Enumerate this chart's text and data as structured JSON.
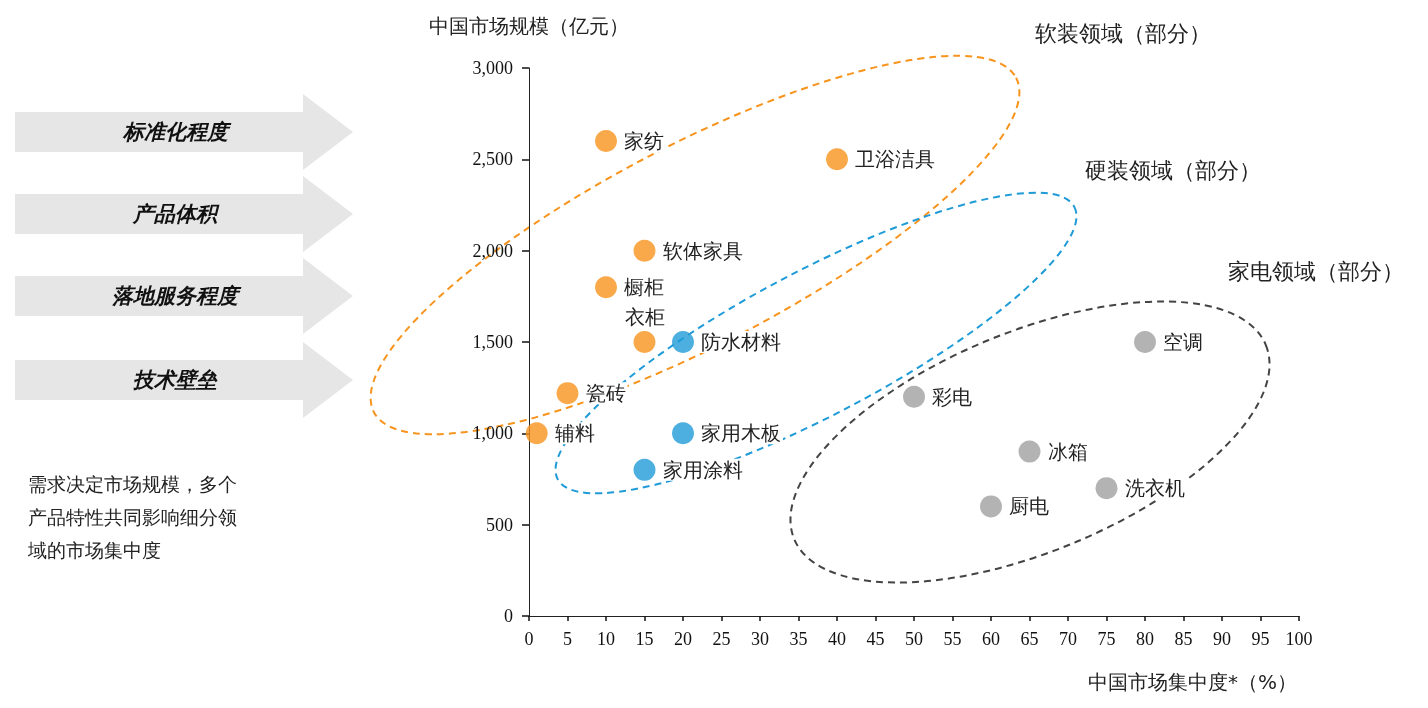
{
  "chart_data": {
    "type": "scatter",
    "xlabel": "中国市场集中度*（%）",
    "ylabel": "中国市场规模（亿元）",
    "xlim": [
      0,
      100
    ],
    "xticks": [
      0,
      5,
      10,
      15,
      20,
      25,
      30,
      35,
      40,
      45,
      50,
      55,
      60,
      65,
      70,
      75,
      80,
      85,
      90,
      95,
      100
    ],
    "ylim": [
      0,
      3000
    ],
    "yticks": [
      0,
      500,
      {
        "value": 1000,
        "label": "1,000"
      },
      {
        "value": 1500,
        "label": "1,500"
      },
      {
        "value": 2000,
        "label": "2,000"
      },
      {
        "value": 2500,
        "label": "2,500"
      },
      {
        "value": 3000,
        "label": "3,000"
      }
    ],
    "marker": "circle",
    "series": [
      {
        "color": "#f7941d",
        "x": [
          10,
          40,
          15,
          10,
          15,
          5,
          1
        ],
        "values": [
          2600,
          2500,
          2000,
          1800,
          1500,
          1220,
          1000
        ]
      },
      {
        "color": "#1f9bd7",
        "x": [
          20,
          20,
          15
        ],
        "values": [
          1500,
          1000,
          800
        ]
      },
      {
        "color": "#a0a0a0",
        "x": [
          80,
          50,
          65,
          75,
          60
        ],
        "values": [
          1500,
          1200,
          900,
          700,
          600
        ]
      }
    ],
    "annotations": [
      "软装领域（部分）",
      "硬装领域（部分）",
      "家电领域（部分）",
      "标准化程度",
      "产品体积",
      "落地服务程度",
      "技术壁垒",
      "需求决定市场规模，多个产品特性共同影响细分领域的市场集中度",
      {
        "text": "家纺",
        "x": 10,
        "y": 2600
      },
      {
        "text": "卫浴洁具",
        "x": 40,
        "y": 2500
      },
      {
        "text": "软体家具",
        "x": 15,
        "y": 2000
      },
      {
        "text": "橱柜",
        "x": 10,
        "y": 1800
      },
      {
        "text": "衣柜",
        "x": 15,
        "y": 1500
      },
      {
        "text": "瓷砖",
        "x": 5,
        "y": 1220
      },
      {
        "text": "辅料",
        "x": 1,
        "y": 1000
      },
      {
        "text": "防水材料",
        "x": 20,
        "y": 1500
      },
      {
        "text": "家用木板",
        "x": 20,
        "y": 1000
      },
      {
        "text": "家用涂料",
        "x": 15,
        "y": 800
      },
      {
        "text": "空调",
        "x": 80,
        "y": 1500
      },
      {
        "text": "彩电",
        "x": 50,
        "y": 1200
      },
      {
        "text": "冰箱",
        "x": 65,
        "y": 900
      },
      {
        "text": "洗衣机",
        "x": 75,
        "y": 700
      },
      {
        "text": "厨电",
        "x": 60,
        "y": 600
      }
    ]
  }
}
